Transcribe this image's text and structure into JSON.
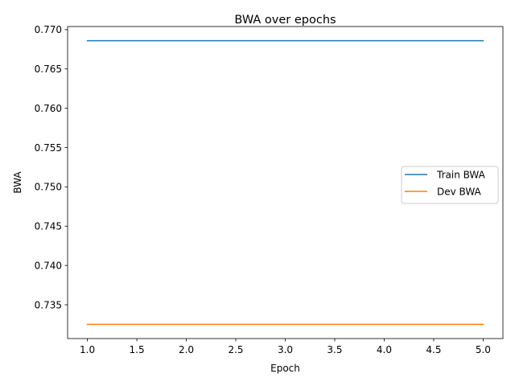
{
  "chart_data": {
    "type": "line",
    "title": "BWA over epochs",
    "xlabel": "Epoch",
    "ylabel": "BWA",
    "x": [
      1,
      2,
      3,
      4,
      5
    ],
    "series": [
      {
        "name": "Train BWA",
        "color": "#1f77b4",
        "values": [
          0.7686,
          0.7686,
          0.7686,
          0.7686,
          0.7686
        ]
      },
      {
        "name": "Dev BWA",
        "color": "#ff7f0e",
        "values": [
          0.7325,
          0.7325,
          0.7325,
          0.7325,
          0.7325
        ]
      }
    ],
    "xlim": [
      0.8,
      5.2
    ],
    "ylim": [
      0.7307,
      0.7704
    ],
    "xticks": [
      1.0,
      1.5,
      2.0,
      2.5,
      3.0,
      3.5,
      4.0,
      4.5,
      5.0
    ],
    "xtick_labels": [
      "1.0",
      "1.5",
      "2.0",
      "2.5",
      "3.0",
      "3.5",
      "4.0",
      "4.5",
      "5.0"
    ],
    "yticks": [
      0.735,
      0.74,
      0.745,
      0.75,
      0.755,
      0.76,
      0.765,
      0.77
    ],
    "ytick_labels": [
      "0.735",
      "0.740",
      "0.745",
      "0.750",
      "0.755",
      "0.760",
      "0.765",
      "0.770"
    ],
    "grid": false,
    "legend_position": "center-right"
  }
}
